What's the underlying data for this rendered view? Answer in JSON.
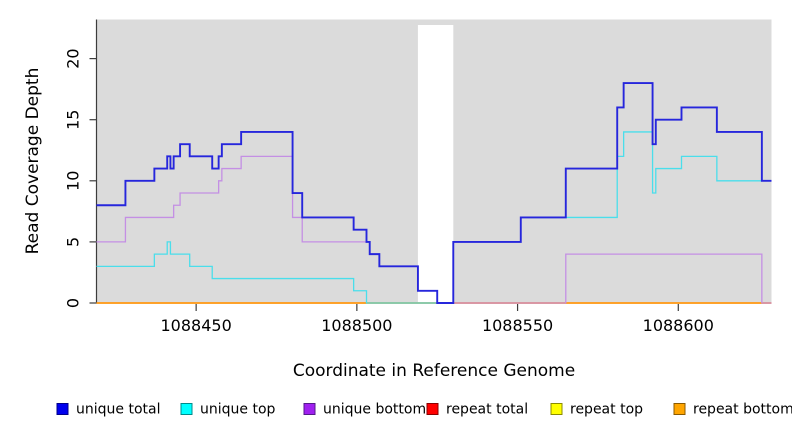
{
  "page": {
    "background": "#ffffff"
  },
  "chart_data": {
    "type": "step-line",
    "title": "",
    "xlabel": "Coordinate in Reference Genome",
    "ylabel": "Read Coverage Depth",
    "x_range": [
      1088419,
      1088629
    ],
    "y_range": [
      0,
      23.2
    ],
    "x_ticks": [
      1088450,
      1088500,
      1088550,
      1088600
    ],
    "y_ticks": [
      0,
      5,
      10,
      15,
      20
    ],
    "grid": false,
    "legend_position": "bottom",
    "panel_color": "#dbdbdb",
    "coverage_gap_x": [
      1088519,
      1088530
    ],
    "series": [
      {
        "name": "repeat total",
        "color": "#ee1111",
        "width": 1.2,
        "points": [
          [
            1088419,
            0
          ],
          [
            1088629,
            0
          ]
        ]
      },
      {
        "name": "repeat top",
        "color": "#ffee22",
        "width": 1.2,
        "points": [
          [
            1088419,
            0
          ],
          [
            1088629,
            0
          ]
        ]
      },
      {
        "name": "repeat bottom",
        "color": "#ff9d1c",
        "width": 1.7,
        "points": [
          [
            1088419,
            0
          ],
          [
            1088629,
            0
          ]
        ]
      },
      {
        "name": "unique bottom",
        "color": "#c48fe4",
        "width": 1.3,
        "points": [
          [
            1088419,
            5
          ],
          [
            1088428,
            7
          ],
          [
            1088443,
            8
          ],
          [
            1088445,
            9
          ],
          [
            1088457,
            10
          ],
          [
            1088458,
            11
          ],
          [
            1088464,
            12
          ],
          [
            1088480,
            7
          ],
          [
            1088483,
            5
          ],
          [
            1088504,
            4
          ],
          [
            1088507,
            3
          ],
          [
            1088519,
            1
          ],
          [
            1088525,
            0
          ],
          [
            1088565,
            4
          ],
          [
            1088626,
            0
          ],
          [
            1088629,
            0
          ]
        ]
      },
      {
        "name": "unique top",
        "color": "#4adeeb",
        "width": 1.3,
        "points": [
          [
            1088419,
            3
          ],
          [
            1088437,
            4
          ],
          [
            1088441,
            5
          ],
          [
            1088442,
            4
          ],
          [
            1088448,
            3
          ],
          [
            1088455,
            2
          ],
          [
            1088499,
            1
          ],
          [
            1088503,
            0
          ],
          [
            1088530,
            5
          ],
          [
            1088551,
            7
          ],
          [
            1088581,
            12
          ],
          [
            1088583,
            14
          ],
          [
            1088592,
            9
          ],
          [
            1088593,
            11
          ],
          [
            1088601,
            12
          ],
          [
            1088612,
            10
          ],
          [
            1088629,
            10
          ]
        ]
      },
      {
        "name": "unique total",
        "color": "#2626dc",
        "width": 1.9,
        "points": [
          [
            1088419,
            8
          ],
          [
            1088428,
            10
          ],
          [
            1088437,
            11
          ],
          [
            1088441,
            12
          ],
          [
            1088442,
            11
          ],
          [
            1088443,
            12
          ],
          [
            1088445,
            13
          ],
          [
            1088448,
            12
          ],
          [
            1088455,
            11
          ],
          [
            1088457,
            12
          ],
          [
            1088458,
            13
          ],
          [
            1088464,
            14
          ],
          [
            1088480,
            9
          ],
          [
            1088483,
            7
          ],
          [
            1088499,
            6
          ],
          [
            1088503,
            5
          ],
          [
            1088504,
            4
          ],
          [
            1088507,
            3
          ],
          [
            1088519,
            1
          ],
          [
            1088525,
            0
          ],
          [
            1088530,
            5
          ],
          [
            1088551,
            7
          ],
          [
            1088565,
            11
          ],
          [
            1088581,
            16
          ],
          [
            1088583,
            18
          ],
          [
            1088592,
            13
          ],
          [
            1088593,
            15
          ],
          [
            1088601,
            16
          ],
          [
            1088612,
            14
          ],
          [
            1088626,
            10
          ],
          [
            1088629,
            10
          ]
        ]
      }
    ],
    "legend": [
      {
        "label": "unique total",
        "fill": "#0000ee",
        "border": "#00008b"
      },
      {
        "label": "unique top",
        "fill": "#00ffff",
        "border": "#008b8b"
      },
      {
        "label": "unique bottom",
        "fill": "#a020f0",
        "border": "#551a8b"
      },
      {
        "label": "repeat total",
        "fill": "#ff0000",
        "border": "#8b0000"
      },
      {
        "label": "repeat top",
        "fill": "#ffff00",
        "border": "#8b8b00"
      },
      {
        "label": "repeat bottom",
        "fill": "#ffa500",
        "border": "#8b5a00"
      }
    ]
  }
}
